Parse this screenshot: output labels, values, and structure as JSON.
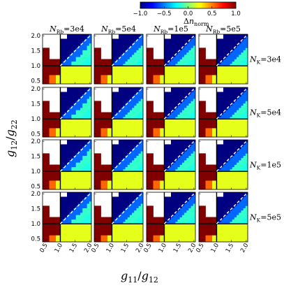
{
  "chart_data": {
    "type": "heatmap",
    "colorbar": {
      "label": "Δn_norm",
      "range": [
        -1.0,
        1.0
      ],
      "ticks": [
        "−1.0",
        "−0.5",
        "0.0",
        "0.5",
        "1.0"
      ],
      "colormap": "jet"
    },
    "x_axis": {
      "label": "g11/g12",
      "range": [
        0.4,
        2.05
      ],
      "ticks": [
        "0.5",
        "1.0",
        "1.5",
        "2.0"
      ],
      "tick_values": [
        0.5,
        1.0,
        1.5,
        2.0
      ]
    },
    "y_axis": {
      "label": "g12/g22",
      "range": [
        0.4,
        2.05
      ],
      "ticks": [
        "0.5",
        "1.0",
        "1.5",
        "2.0"
      ],
      "tick_values": [
        0.5,
        1.0,
        1.5,
        2.0
      ]
    },
    "columns": [
      {
        "sym": "N",
        "sub": "Rb",
        "value": "=3e4"
      },
      {
        "sym": "N",
        "sub": "Rb",
        "value": "=5e4"
      },
      {
        "sym": "N",
        "sub": "Rb",
        "value": "=1e5"
      },
      {
        "sym": "N",
        "sub": "Rb",
        "value": "=5e5"
      }
    ],
    "rows": [
      {
        "sym": "N",
        "sub": "K",
        "value": "=3e4"
      },
      {
        "sym": "N",
        "sub": "K",
        "value": "=5e4"
      },
      {
        "sym": "N",
        "sub": "K",
        "value": "=1e5"
      },
      {
        "sym": "N",
        "sub": "K",
        "value": "=5e5"
      }
    ],
    "reference_lines": [
      "x = 1",
      "y = 1",
      "y = x (dashed)"
    ],
    "regions": {
      "upper_right_above_diagonal": -1.0,
      "upper_right_below_diagonal": -0.3,
      "lower_right": 0.2,
      "lower_left": 1.0,
      "upper_left": "no data (white)"
    }
  }
}
